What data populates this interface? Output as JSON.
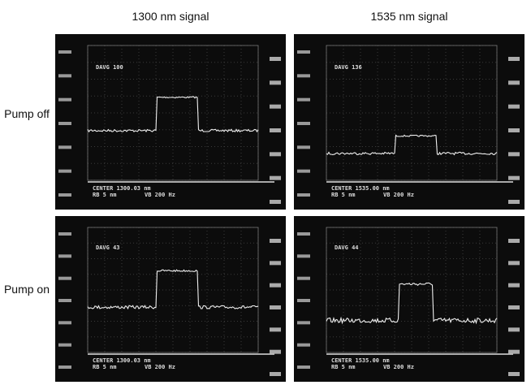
{
  "columns": [
    "1300 nm signal",
    "1535 nm signal"
  ],
  "rows": [
    "Pump off",
    "Pump on"
  ],
  "panels": [
    {
      "avg": "DAVG 100",
      "center": "CENTER 1300.03 nm",
      "rb": "RB 5 nm",
      "vb": "VB 200 Hz"
    },
    {
      "avg": "DAVG 136",
      "center": "CENTER 1535.00 nm",
      "rb": "RB 5 nm",
      "vb": "VB 200 Hz"
    },
    {
      "avg": "DAVG 43",
      "center": "CENTER 1300.03 nm",
      "rb": "RB 5 nm",
      "vb": "VB 200 Hz"
    },
    {
      "avg": "DAVG 44",
      "center": "CENTER 1535.00 nm",
      "rb": "RB 5 nm",
      "vb": "VB 200 Hz"
    }
  ]
}
